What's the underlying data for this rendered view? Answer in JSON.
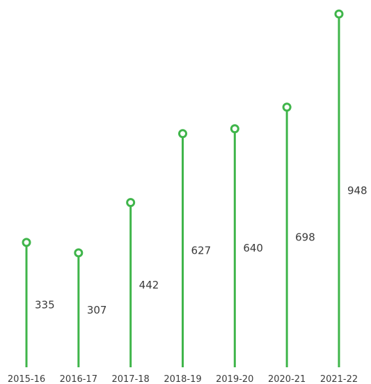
{
  "chart_data": {
    "type": "lollipop",
    "categories": [
      "2015-16",
      "2016-17",
      "2017-18",
      "2018-19",
      "2019-20",
      "2020-21",
      "2021-22"
    ],
    "values": [
      335,
      307,
      442,
      627,
      640,
      698,
      948
    ],
    "value_labels": [
      "335",
      "307",
      "442",
      "627",
      "640",
      "698",
      "948"
    ],
    "title": "",
    "xlabel": "",
    "ylabel": "",
    "ylim": [
      0,
      950
    ],
    "grid": false,
    "legend": "none",
    "colors": {
      "stem": "#3fb54a",
      "marker_fill": "#ffffff",
      "text": "#3a3a3a"
    }
  }
}
